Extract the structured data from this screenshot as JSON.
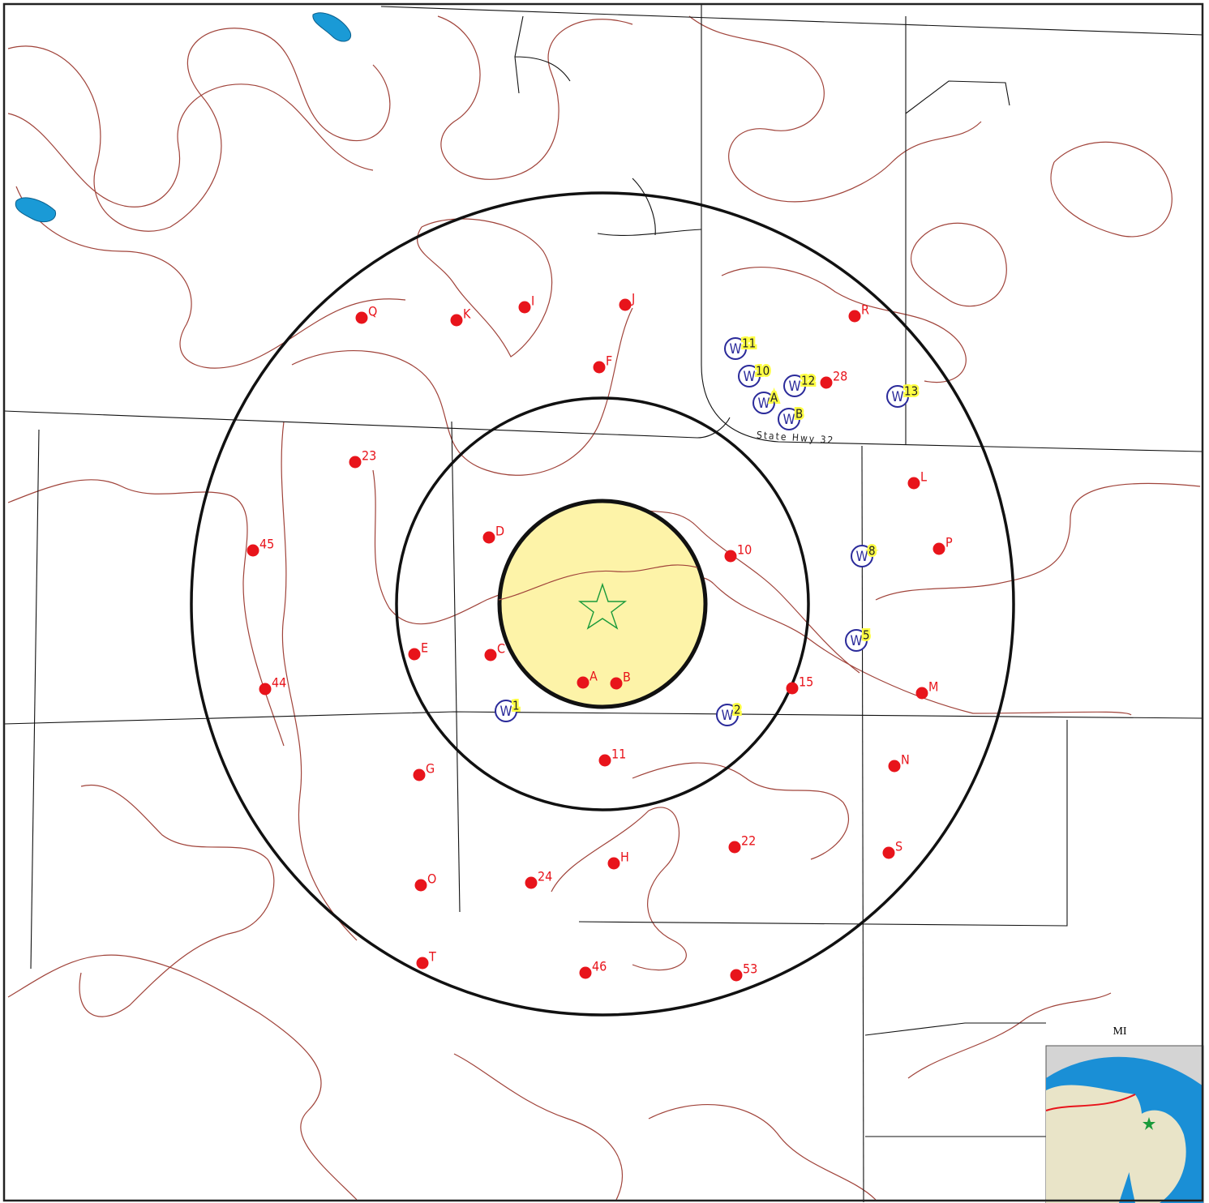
{
  "map": {
    "points": [
      "Q",
      "K",
      "I",
      "J",
      "F",
      "R",
      "28",
      "23",
      "L",
      "D",
      "45",
      "10",
      "P",
      "E",
      "C",
      "44",
      "A",
      "B",
      "15",
      "M",
      "11",
      "N",
      "G",
      "22",
      "S",
      "H",
      "O",
      "24",
      "T",
      "46",
      "53"
    ],
    "wells": [
      "11",
      "10",
      "12",
      "A",
      "B",
      "13",
      "8",
      "5",
      "1",
      "2"
    ],
    "well_symbol": "W",
    "road_label": "State Hwy 32",
    "inset_label": "MI"
  }
}
